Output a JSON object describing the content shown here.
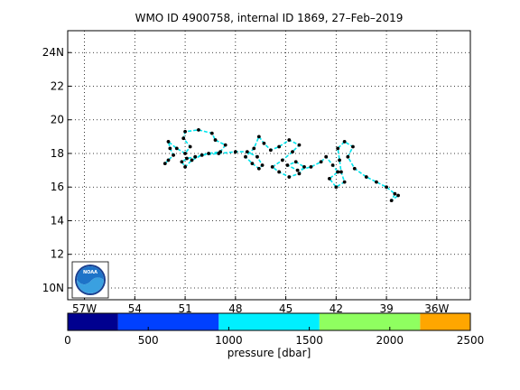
{
  "chart_data": {
    "type": "line",
    "title": "WMO ID 4900758, internal ID 1869, 27–Feb–2019",
    "map": {
      "xlim": [
        -58,
        -34
      ],
      "ylim": [
        9.3,
        25.3
      ],
      "x_ticks": [
        {
          "value": -57,
          "label": "57W"
        },
        {
          "value": -54,
          "label": "54"
        },
        {
          "value": -51,
          "label": "51"
        },
        {
          "value": -48,
          "label": "48"
        },
        {
          "value": -45,
          "label": "45"
        },
        {
          "value": -42,
          "label": "42"
        },
        {
          "value": -39,
          "label": "39"
        },
        {
          "value": -36,
          "label": "36W"
        }
      ],
      "y_ticks": [
        {
          "value": 10,
          "label": "10N"
        },
        {
          "value": 12,
          "label": "12"
        },
        {
          "value": 14,
          "label": "14"
        },
        {
          "value": 16,
          "label": "16"
        },
        {
          "value": 18,
          "label": "18"
        },
        {
          "value": 20,
          "label": "20"
        },
        {
          "value": 22,
          "label": "22"
        },
        {
          "value": 24,
          "label": "24N"
        }
      ],
      "grid": true,
      "track_color": "#00e5ee",
      "point_color": "#000000"
    },
    "series": [
      {
        "values": [
          [
            -52.2,
            17.4
          ],
          [
            -52.0,
            17.6
          ],
          [
            -51.7,
            17.9
          ],
          [
            -51.9,
            18.3
          ],
          [
            -52.0,
            18.7
          ],
          [
            -51.5,
            18.3
          ],
          [
            -51.0,
            18.0
          ],
          [
            -50.7,
            18.4
          ],
          [
            -51.1,
            18.9
          ],
          [
            -51.0,
            19.3
          ],
          [
            -50.2,
            19.4
          ],
          [
            -49.4,
            19.2
          ],
          [
            -49.2,
            18.8
          ],
          [
            -48.6,
            18.5
          ],
          [
            -48.9,
            18.1
          ],
          [
            -49.6,
            18.0
          ],
          [
            -50.4,
            17.8
          ],
          [
            -50.9,
            17.7
          ],
          [
            -51.2,
            17.5
          ],
          [
            -51.0,
            17.2
          ],
          [
            -50.6,
            17.6
          ],
          [
            -50.0,
            17.9
          ],
          [
            -49.0,
            18.0
          ],
          [
            -48.0,
            18.1
          ],
          [
            -47.3,
            18.1
          ],
          [
            -46.7,
            17.8
          ],
          [
            -46.4,
            17.3
          ],
          [
            -46.6,
            17.1
          ],
          [
            -47.0,
            17.4
          ],
          [
            -47.4,
            17.8
          ],
          [
            -46.9,
            18.3
          ],
          [
            -46.6,
            19.0
          ],
          [
            -46.3,
            18.6
          ],
          [
            -45.9,
            18.2
          ],
          [
            -45.4,
            18.4
          ],
          [
            -44.8,
            18.8
          ],
          [
            -44.2,
            18.5
          ],
          [
            -44.6,
            18.1
          ],
          [
            -45.2,
            17.6
          ],
          [
            -45.8,
            17.2
          ],
          [
            -45.4,
            16.9
          ],
          [
            -44.8,
            16.6
          ],
          [
            -44.2,
            16.8
          ],
          [
            -43.9,
            17.2
          ],
          [
            -44.4,
            17.5
          ],
          [
            -44.9,
            17.3
          ],
          [
            -44.3,
            17.0
          ],
          [
            -43.5,
            17.2
          ],
          [
            -42.9,
            17.5
          ],
          [
            -42.6,
            17.8
          ],
          [
            -42.2,
            17.3
          ],
          [
            -41.9,
            16.9
          ],
          [
            -42.4,
            16.5
          ],
          [
            -42.0,
            16.0
          ],
          [
            -41.5,
            16.3
          ],
          [
            -41.7,
            16.9
          ],
          [
            -41.8,
            17.6
          ],
          [
            -41.9,
            18.3
          ],
          [
            -41.5,
            18.7
          ],
          [
            -41.0,
            18.4
          ],
          [
            -41.3,
            17.8
          ],
          [
            -40.9,
            17.1
          ],
          [
            -40.2,
            16.6
          ],
          [
            -39.6,
            16.3
          ],
          [
            -39.0,
            16.0
          ],
          [
            -38.5,
            15.6
          ],
          [
            -38.7,
            15.2
          ],
          [
            -38.3,
            15.5
          ]
        ]
      }
    ],
    "colorbar": {
      "label": "pressure [dbar]",
      "ticks": [
        {
          "value": 0,
          "label": "0"
        },
        {
          "value": 500,
          "label": "500"
        },
        {
          "value": 1000,
          "label": "1000"
        },
        {
          "value": 1500,
          "label": "1500"
        },
        {
          "value": 2000,
          "label": "2000"
        },
        {
          "value": 2500,
          "label": "2500"
        }
      ],
      "range": [
        0,
        2500
      ],
      "bands": [
        {
          "from": 0,
          "to": 313,
          "color": "#00008f"
        },
        {
          "from": 313,
          "to": 938,
          "color": "#0040ff"
        },
        {
          "from": 938,
          "to": 1563,
          "color": "#00efff"
        },
        {
          "from": 1563,
          "to": 2188,
          "color": "#8fff60"
        },
        {
          "from": 2188,
          "to": 2500,
          "color": "#ffa600"
        }
      ]
    }
  },
  "logo": {
    "text": "NOAA",
    "icon": "noaa-logo-icon"
  }
}
